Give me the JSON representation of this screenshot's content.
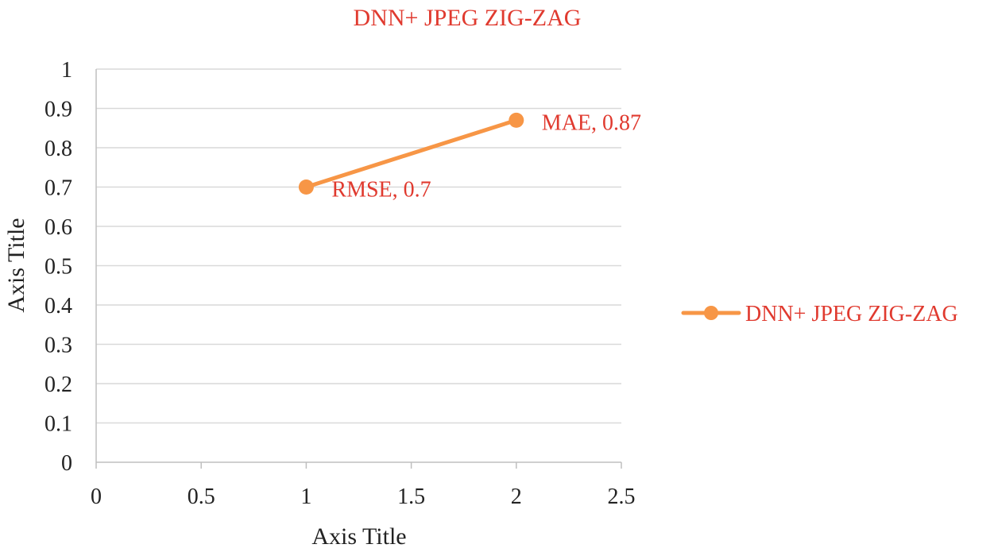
{
  "chart_data": {
    "type": "line",
    "title": "DNN+ JPEG ZIG-ZAG",
    "xlabel": "Axis Title",
    "ylabel": "Axis Title",
    "xlim": [
      0,
      2.5
    ],
    "ylim": [
      0,
      1
    ],
    "xticks": [
      0,
      0.5,
      1,
      1.5,
      2,
      2.5
    ],
    "yticks": [
      0,
      0.1,
      0.2,
      0.3,
      0.4,
      0.5,
      0.6,
      0.7,
      0.8,
      0.9,
      1
    ],
    "xtick_labels": [
      "0",
      "0.5",
      "1",
      "1.5",
      "2",
      "2.5"
    ],
    "ytick_labels": [
      "0",
      "0.1",
      "0.2",
      "0.3",
      "0.4",
      "0.5",
      "0.6",
      "0.7",
      "0.8",
      "0.9",
      "1"
    ],
    "grid": true,
    "legend_position": "right",
    "series": [
      {
        "name": "DNN+ JPEG ZIG-ZAG",
        "color": "#f79646",
        "points": [
          {
            "x": 1,
            "y": 0.7,
            "label": "RMSE, 0.7"
          },
          {
            "x": 2,
            "y": 0.87,
            "label": "MAE, 0.87"
          }
        ]
      }
    ]
  },
  "colors": {
    "label_text": "#e03a2f",
    "axis_text": "#222222",
    "grid": "#d9d9d9",
    "axis_line": "#bfbfbf"
  }
}
